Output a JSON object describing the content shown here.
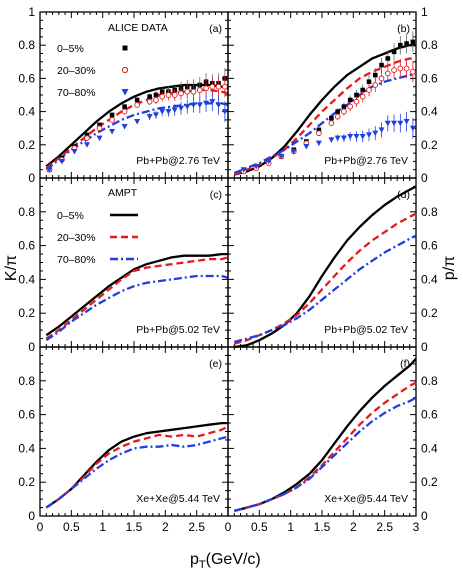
{
  "figure": {
    "xlabel_main": "p",
    "xlabel_sub": "T",
    "xlabel_unit": "(GeV/c)",
    "left_ylabel": "K/π",
    "right_ylabel": "p/π",
    "x_ticks": [
      "0",
      "0.5",
      "1",
      "1.5",
      "2",
      "2.5"
    ],
    "x_ticks_right": [
      "0",
      "0.5",
      "1",
      "1.5",
      "2",
      "2.5",
      "3"
    ],
    "y_ticks": [
      "0",
      "0.2",
      "0.4",
      "0.6",
      "0.8",
      "1"
    ],
    "y_ticks_inner": [
      "0",
      "0.2",
      "0.4",
      "0.6",
      "0.8"
    ]
  },
  "panels_text": {
    "a": {
      "letter": "(a)",
      "system": "Pb+Pb@2.76 TeV"
    },
    "b": {
      "letter": "(b)",
      "system": "Pb+Pb@2.76 TeV"
    },
    "c": {
      "letter": "(c)",
      "system": "Pb+Pb@5.02 TeV"
    },
    "d": {
      "letter": "(d)",
      "system": "Pb+Pb@5.02 TeV"
    },
    "e": {
      "letter": "(e)",
      "system": "Xe+Xe@5.44 TeV"
    },
    "f": {
      "letter": "(f)",
      "system": "Xe+Xe@5.44 TeV"
    }
  },
  "legend_data": {
    "title": "ALICE DATA",
    "entries": [
      "0–5%",
      "20–30%",
      "70–80%"
    ]
  },
  "legend_model": {
    "title": "AMPT",
    "entries": [
      "0–5%",
      "20–30%",
      "70–80%"
    ]
  },
  "colors": {
    "central": "#000000",
    "mid": "#e41a1c",
    "peripheral": "#1f3fe0"
  },
  "chart_data": [
    {
      "panel": "a",
      "type": "line",
      "xlim": [
        0,
        3
      ],
      "ylim": [
        0,
        1
      ],
      "series": [
        {
          "name": "0–5%",
          "x": [
            0.1,
            0.3,
            0.5,
            0.7,
            0.9,
            1.1,
            1.3,
            1.5,
            1.7,
            1.9,
            2.1,
            2.3,
            2.5,
            2.7,
            2.9,
            3.0
          ],
          "y": [
            0.07,
            0.13,
            0.2,
            0.27,
            0.34,
            0.4,
            0.45,
            0.49,
            0.52,
            0.54,
            0.55,
            0.56,
            0.56,
            0.56,
            0.55,
            0.54
          ]
        },
        {
          "name": "20–30%",
          "x": [
            0.1,
            0.3,
            0.5,
            0.7,
            0.9,
            1.1,
            1.3,
            1.5,
            1.7,
            1.9,
            2.1,
            2.3,
            2.5,
            2.7,
            2.9,
            3.0
          ],
          "y": [
            0.06,
            0.12,
            0.18,
            0.24,
            0.3,
            0.35,
            0.4,
            0.44,
            0.47,
            0.5,
            0.51,
            0.52,
            0.53,
            0.53,
            0.52,
            0.51
          ]
        },
        {
          "name": "70–80%",
          "x": [
            0.1,
            0.3,
            0.5,
            0.7,
            0.9,
            1.1,
            1.3,
            1.5,
            1.7,
            1.9,
            2.1,
            2.3,
            2.5,
            2.7,
            2.9,
            3.0
          ],
          "y": [
            0.05,
            0.11,
            0.17,
            0.22,
            0.27,
            0.31,
            0.35,
            0.38,
            0.4,
            0.42,
            0.43,
            0.44,
            0.45,
            0.45,
            0.45,
            0.44
          ]
        }
      ],
      "data_points": [
        {
          "name": "0–5%",
          "x": [
            0.15,
            0.35,
            0.55,
            0.75,
            0.95,
            1.15,
            1.35,
            1.55,
            1.75,
            1.85,
            1.95,
            2.05,
            2.15,
            2.25,
            2.35,
            2.45,
            2.55,
            2.65,
            2.75,
            2.85,
            2.95
          ],
          "y": [
            0.05,
            0.12,
            0.19,
            0.26,
            0.32,
            0.38,
            0.43,
            0.47,
            0.49,
            0.5,
            0.52,
            0.52,
            0.53,
            0.54,
            0.55,
            0.55,
            0.56,
            0.58,
            0.57,
            0.57,
            0.6
          ]
        },
        {
          "name": "20–30%",
          "x": [
            0.15,
            0.35,
            0.55,
            0.75,
            0.95,
            1.15,
            1.35,
            1.55,
            1.75,
            1.85,
            1.95,
            2.05,
            2.15,
            2.25,
            2.35,
            2.45,
            2.55,
            2.65,
            2.75,
            2.85,
            2.95
          ],
          "y": [
            0.05,
            0.11,
            0.18,
            0.24,
            0.3,
            0.35,
            0.4,
            0.44,
            0.46,
            0.47,
            0.49,
            0.5,
            0.5,
            0.51,
            0.52,
            0.52,
            0.53,
            0.54,
            0.55,
            0.55,
            0.55
          ]
        },
        {
          "name": "70–80%",
          "x": [
            0.15,
            0.35,
            0.55,
            0.75,
            0.95,
            1.15,
            1.35,
            1.55,
            1.75,
            1.85,
            1.95,
            2.05,
            2.15,
            2.25,
            2.35,
            2.45,
            2.55,
            2.65,
            2.75,
            2.85,
            2.95
          ],
          "y": [
            0.05,
            0.1,
            0.16,
            0.2,
            0.24,
            0.28,
            0.31,
            0.34,
            0.37,
            0.38,
            0.4,
            0.4,
            0.41,
            0.42,
            0.43,
            0.44,
            0.44,
            0.45,
            0.46,
            0.44,
            0.4
          ]
        }
      ]
    },
    {
      "panel": "b",
      "type": "line",
      "xlim": [
        0,
        3
      ],
      "ylim": [
        0,
        1
      ],
      "series": [
        {
          "name": "0–5%",
          "x": [
            0.1,
            0.3,
            0.5,
            0.7,
            0.9,
            1.1,
            1.3,
            1.5,
            1.7,
            1.9,
            2.1,
            2.3,
            2.5,
            2.7,
            2.9,
            3.0
          ],
          "y": [
            0.02,
            0.04,
            0.07,
            0.12,
            0.19,
            0.28,
            0.38,
            0.47,
            0.55,
            0.62,
            0.67,
            0.72,
            0.75,
            0.78,
            0.8,
            0.8
          ]
        },
        {
          "name": "20–30%",
          "x": [
            0.1,
            0.3,
            0.5,
            0.7,
            0.9,
            1.1,
            1.3,
            1.5,
            1.7,
            1.9,
            2.1,
            2.3,
            2.5,
            2.7,
            2.9,
            3.0
          ],
          "y": [
            0.02,
            0.05,
            0.08,
            0.12,
            0.17,
            0.24,
            0.32,
            0.4,
            0.47,
            0.54,
            0.6,
            0.64,
            0.67,
            0.7,
            0.72,
            0.72
          ]
        },
        {
          "name": "70–80%",
          "x": [
            0.1,
            0.3,
            0.5,
            0.7,
            0.9,
            1.1,
            1.3,
            1.5,
            1.7,
            1.9,
            2.1,
            2.3,
            2.5,
            2.7,
            2.9,
            3.0
          ],
          "y": [
            0.03,
            0.06,
            0.09,
            0.13,
            0.17,
            0.22,
            0.27,
            0.33,
            0.39,
            0.44,
            0.5,
            0.55,
            0.58,
            0.6,
            0.62,
            0.62
          ]
        }
      ],
      "data_points": [
        {
          "name": "0–5%",
          "x": [
            0.25,
            0.45,
            0.65,
            0.85,
            1.05,
            1.25,
            1.45,
            1.65,
            1.75,
            1.85,
            1.95,
            2.05,
            2.15,
            2.25,
            2.35,
            2.45,
            2.55,
            2.65,
            2.75,
            2.85,
            2.95
          ],
          "y": [
            0.04,
            0.06,
            0.1,
            0.13,
            0.17,
            0.22,
            0.29,
            0.36,
            0.4,
            0.43,
            0.47,
            0.5,
            0.53,
            0.58,
            0.62,
            0.68,
            0.72,
            0.76,
            0.8,
            0.81,
            0.82
          ]
        },
        {
          "name": "20–30%",
          "x": [
            0.25,
            0.45,
            0.65,
            0.85,
            1.05,
            1.25,
            1.45,
            1.65,
            1.75,
            1.85,
            1.95,
            2.05,
            2.15,
            2.25,
            2.35,
            2.45,
            2.55,
            2.65,
            2.75,
            2.85,
            2.95
          ],
          "y": [
            0.04,
            0.06,
            0.09,
            0.13,
            0.16,
            0.21,
            0.27,
            0.33,
            0.37,
            0.4,
            0.43,
            0.46,
            0.49,
            0.53,
            0.56,
            0.6,
            0.63,
            0.65,
            0.66,
            0.66,
            0.64
          ]
        },
        {
          "name": "70–80%",
          "x": [
            0.25,
            0.45,
            0.65,
            0.85,
            1.05,
            1.25,
            1.45,
            1.65,
            1.75,
            1.85,
            1.95,
            2.05,
            2.15,
            2.25,
            2.35,
            2.45,
            2.55,
            2.65,
            2.75,
            2.85,
            2.95
          ],
          "y": [
            0.05,
            0.07,
            0.1,
            0.13,
            0.16,
            0.19,
            0.21,
            0.23,
            0.24,
            0.24,
            0.25,
            0.25,
            0.25,
            0.26,
            0.27,
            0.29,
            0.33,
            0.33,
            0.33,
            0.34,
            0.3
          ]
        }
      ]
    },
    {
      "panel": "c",
      "type": "line",
      "xlim": [
        0,
        3
      ],
      "ylim": [
        0,
        1
      ],
      "series": [
        {
          "name": "0–5%",
          "x": [
            0.1,
            0.3,
            0.5,
            0.7,
            0.9,
            1.1,
            1.3,
            1.5,
            1.7,
            1.9,
            2.1,
            2.3,
            2.5,
            2.7,
            2.9,
            3.0
          ],
          "y": [
            0.07,
            0.12,
            0.18,
            0.24,
            0.3,
            0.36,
            0.41,
            0.46,
            0.49,
            0.51,
            0.53,
            0.54,
            0.54,
            0.54,
            0.55,
            0.55
          ]
        },
        {
          "name": "20–30%",
          "x": [
            0.1,
            0.3,
            0.5,
            0.7,
            0.9,
            1.1,
            1.3,
            1.5,
            1.7,
            1.9,
            2.1,
            2.3,
            2.5,
            2.7,
            2.9,
            3.0
          ],
          "y": [
            0.05,
            0.1,
            0.16,
            0.22,
            0.28,
            0.34,
            0.4,
            0.45,
            0.47,
            0.48,
            0.49,
            0.5,
            0.51,
            0.52,
            0.52,
            0.53
          ]
        },
        {
          "name": "70–80%",
          "x": [
            0.1,
            0.3,
            0.5,
            0.7,
            0.9,
            1.1,
            1.3,
            1.5,
            1.7,
            1.9,
            2.1,
            2.3,
            2.5,
            2.7,
            2.9,
            3.0
          ],
          "y": [
            0.04,
            0.09,
            0.15,
            0.2,
            0.25,
            0.29,
            0.33,
            0.36,
            0.38,
            0.39,
            0.4,
            0.41,
            0.42,
            0.42,
            0.42,
            0.41
          ]
        }
      ]
    },
    {
      "panel": "d",
      "type": "line",
      "xlim": [
        0,
        3
      ],
      "ylim": [
        0,
        1
      ],
      "series": [
        {
          "name": "0–5%",
          "x": [
            0.1,
            0.3,
            0.5,
            0.7,
            0.9,
            1.1,
            1.3,
            1.5,
            1.7,
            1.9,
            2.1,
            2.3,
            2.5,
            2.7,
            2.9,
            3.0
          ],
          "y": [
            0.0,
            0.01,
            0.04,
            0.08,
            0.13,
            0.2,
            0.3,
            0.42,
            0.53,
            0.63,
            0.71,
            0.78,
            0.84,
            0.89,
            0.93,
            0.95
          ]
        },
        {
          "name": "20–30%",
          "x": [
            0.1,
            0.3,
            0.5,
            0.7,
            0.9,
            1.1,
            1.3,
            1.5,
            1.7,
            1.9,
            2.1,
            2.3,
            2.5,
            2.7,
            2.9,
            3.0
          ],
          "y": [
            0.02,
            0.04,
            0.07,
            0.1,
            0.14,
            0.19,
            0.26,
            0.34,
            0.42,
            0.5,
            0.57,
            0.63,
            0.68,
            0.73,
            0.77,
            0.79
          ]
        },
        {
          "name": "70–80%",
          "x": [
            0.1,
            0.3,
            0.5,
            0.7,
            0.9,
            1.1,
            1.3,
            1.5,
            1.7,
            1.9,
            2.1,
            2.3,
            2.5,
            2.7,
            2.9,
            3.0
          ],
          "y": [
            0.03,
            0.05,
            0.07,
            0.1,
            0.13,
            0.17,
            0.22,
            0.28,
            0.34,
            0.4,
            0.46,
            0.51,
            0.56,
            0.6,
            0.64,
            0.66
          ]
        }
      ]
    },
    {
      "panel": "e",
      "type": "line",
      "xlim": [
        0,
        3
      ],
      "ylim": [
        0,
        1
      ],
      "series": [
        {
          "name": "0–5%",
          "x": [
            0.1,
            0.3,
            0.5,
            0.7,
            0.9,
            1.1,
            1.3,
            1.5,
            1.7,
            1.9,
            2.1,
            2.3,
            2.5,
            2.7,
            2.9,
            3.0
          ],
          "y": [
            0.05,
            0.1,
            0.16,
            0.24,
            0.32,
            0.39,
            0.44,
            0.47,
            0.49,
            0.5,
            0.51,
            0.52,
            0.53,
            0.54,
            0.55,
            0.55
          ]
        },
        {
          "name": "20–30%",
          "x": [
            0.1,
            0.3,
            0.5,
            0.7,
            0.9,
            1.1,
            1.3,
            1.5,
            1.7,
            1.9,
            2.1,
            2.3,
            2.5,
            2.7,
            2.9,
            3.0
          ],
          "y": [
            0.05,
            0.1,
            0.16,
            0.23,
            0.31,
            0.37,
            0.41,
            0.44,
            0.46,
            0.48,
            0.47,
            0.48,
            0.47,
            0.49,
            0.51,
            0.53
          ]
        },
        {
          "name": "70–80%",
          "x": [
            0.1,
            0.3,
            0.5,
            0.7,
            0.9,
            1.1,
            1.3,
            1.5,
            1.7,
            1.9,
            2.1,
            2.3,
            2.5,
            2.7,
            2.9,
            3.0
          ],
          "y": [
            0.05,
            0.1,
            0.16,
            0.22,
            0.28,
            0.33,
            0.37,
            0.4,
            0.41,
            0.41,
            0.42,
            0.41,
            0.42,
            0.44,
            0.46,
            0.47
          ]
        }
      ]
    },
    {
      "panel": "f",
      "type": "line",
      "xlim": [
        0,
        3
      ],
      "ylim": [
        0,
        1
      ],
      "series": [
        {
          "name": "0–5%",
          "x": [
            0.1,
            0.3,
            0.5,
            0.7,
            0.9,
            1.1,
            1.3,
            1.5,
            1.7,
            1.9,
            2.1,
            2.3,
            2.5,
            2.7,
            2.9,
            3.0
          ],
          "y": [
            0.03,
            0.05,
            0.07,
            0.1,
            0.14,
            0.19,
            0.25,
            0.33,
            0.43,
            0.53,
            0.62,
            0.7,
            0.77,
            0.83,
            0.89,
            0.93
          ]
        },
        {
          "name": "20–30%",
          "x": [
            0.1,
            0.3,
            0.5,
            0.7,
            0.9,
            1.1,
            1.3,
            1.5,
            1.7,
            1.9,
            2.1,
            2.3,
            2.5,
            2.7,
            2.9,
            3.0
          ],
          "y": [
            0.03,
            0.05,
            0.07,
            0.1,
            0.13,
            0.17,
            0.23,
            0.3,
            0.38,
            0.46,
            0.54,
            0.61,
            0.67,
            0.72,
            0.77,
            0.79
          ]
        },
        {
          "name": "70–80%",
          "x": [
            0.1,
            0.3,
            0.5,
            0.7,
            0.9,
            1.1,
            1.3,
            1.5,
            1.7,
            1.9,
            2.1,
            2.3,
            2.5,
            2.7,
            2.9,
            3.0
          ],
          "y": [
            0.03,
            0.05,
            0.07,
            0.1,
            0.13,
            0.17,
            0.22,
            0.29,
            0.36,
            0.43,
            0.5,
            0.56,
            0.61,
            0.65,
            0.68,
            0.7
          ]
        }
      ]
    }
  ]
}
